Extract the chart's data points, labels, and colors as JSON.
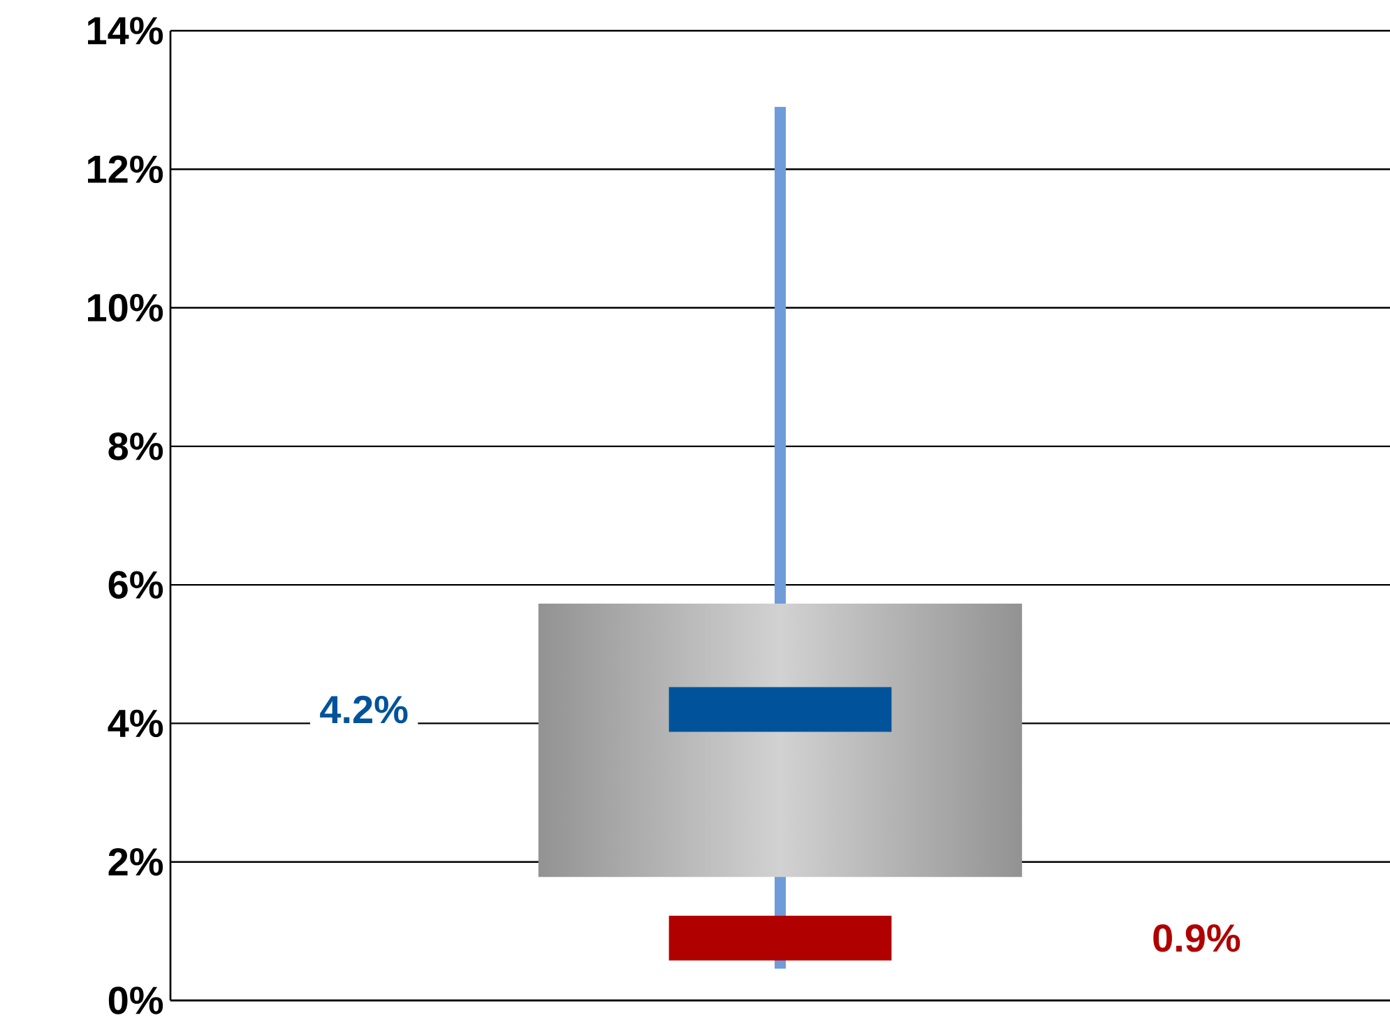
{
  "chart_data": {
    "type": "box",
    "categories": [
      null
    ],
    "series": [
      {
        "color": "#00539b",
        "boxes": [
          {
            "low": 0.46,
            "q1": 1.78,
            "median": 4.2,
            "q3": 5.73,
            "high": 12.9,
            "mean": 0.9
          }
        ]
      }
    ],
    "ylim": [
      0,
      14
    ],
    "yticks": [
      {
        "value": 0,
        "label": "0%"
      },
      {
        "value": 2,
        "label": "2%"
      },
      {
        "value": 4,
        "label": "4%"
      },
      {
        "value": 6,
        "label": "6%"
      },
      {
        "value": 8,
        "label": "8%"
      },
      {
        "value": 10,
        "label": "10%"
      },
      {
        "value": 12,
        "label": "12%"
      },
      {
        "value": 14,
        "label": "14%"
      }
    ],
    "grid": "y",
    "annotations": [
      "4.2%",
      "0.9%"
    ]
  }
}
